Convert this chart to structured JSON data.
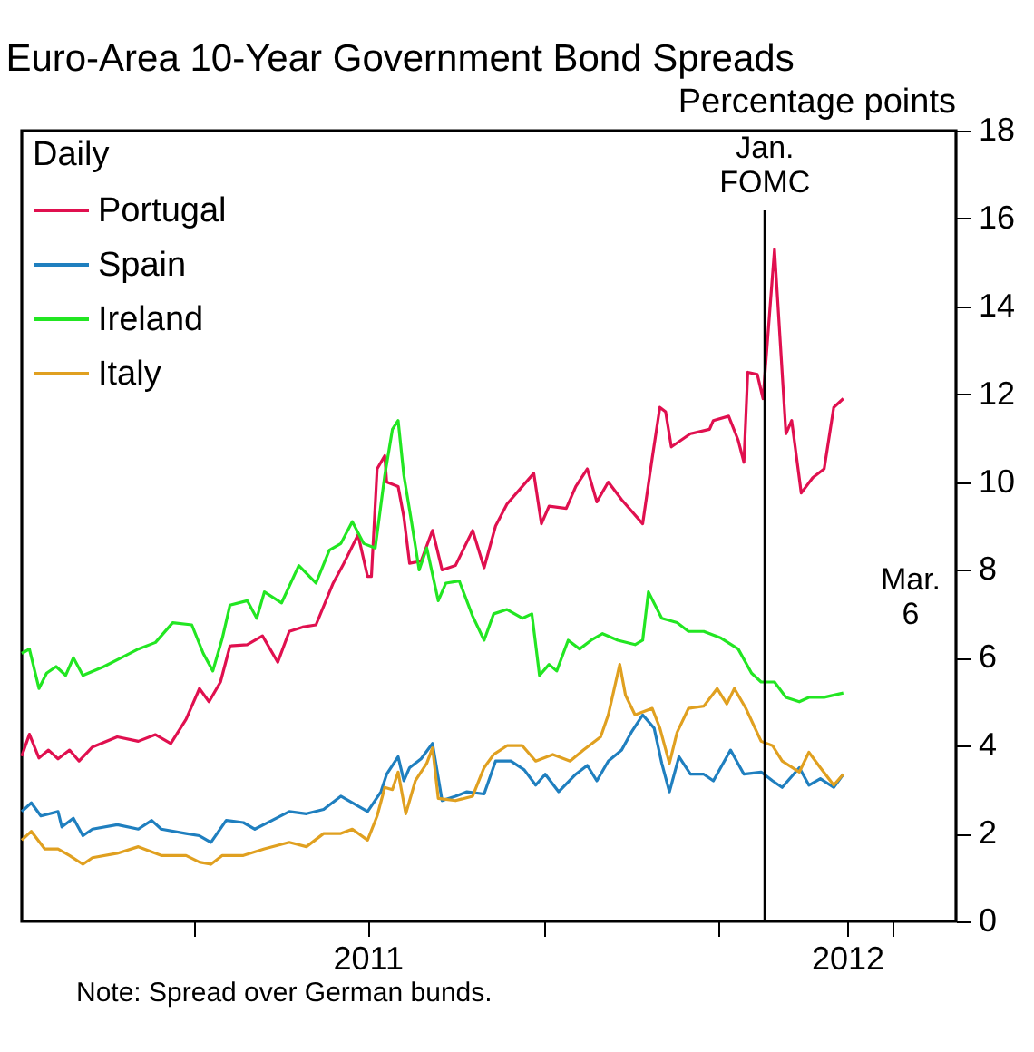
{
  "chart_data": {
    "type": "line",
    "title": "Euro-Area 10-Year Government Bond Spreads",
    "ylabel": "Percentage points",
    "legend_title": "Daily",
    "legend": "top left",
    "grid": false,
    "xlim": [
      "2011-01-01",
      "2012-05-04"
    ],
    "xticks": [
      {
        "value": "2011-04-01",
        "label": null
      },
      {
        "value": "2011-07-01",
        "label": "2011"
      },
      {
        "value": "2011-10-01",
        "label": null
      },
      {
        "value": "2012-01-01",
        "label": null
      },
      {
        "value": "2012-03-08",
        "label": "2012"
      },
      {
        "value": "2012-04-01",
        "label": null
      }
    ],
    "ylim": [
      0,
      18
    ],
    "yticks": [
      0,
      2,
      4,
      6,
      8,
      10,
      12,
      14,
      16,
      18
    ],
    "ref_lines": [
      {
        "axis": "x",
        "value": "2012-01-25",
        "label": "Jan. FOMC",
        "color": "#000000"
      }
    ],
    "annotations": [
      "Mar. 6",
      "Note: Spread over German bunds."
    ],
    "series": [
      {
        "name": "Portugal",
        "color": "#e0104f",
        "x": [
          "2011-01-01",
          "2011-01-05",
          "2011-01-10",
          "2011-01-15",
          "2011-01-20",
          "2011-01-26",
          "2011-01-31",
          "2011-02-07",
          "2011-02-20",
          "2011-03-03",
          "2011-03-12",
          "2011-03-20",
          "2011-03-28",
          "2011-04-04",
          "2011-04-09",
          "2011-04-15",
          "2011-04-20",
          "2011-04-29",
          "2011-05-07",
          "2011-05-15",
          "2011-05-21",
          "2011-05-28",
          "2011-06-04",
          "2011-06-13",
          "2011-06-18",
          "2011-06-26",
          "2011-07-01",
          "2011-07-03",
          "2011-07-06",
          "2011-07-10",
          "2011-07-11",
          "2011-07-17",
          "2011-07-20",
          "2011-07-23",
          "2011-07-29",
          "2011-08-04",
          "2011-08-09",
          "2011-08-16",
          "2011-08-25",
          "2011-08-31",
          "2011-09-06",
          "2011-09-12",
          "2011-09-20",
          "2011-09-26",
          "2011-09-30",
          "2011-10-04",
          "2011-10-13",
          "2011-10-18",
          "2011-10-24",
          "2011-10-29",
          "2011-11-04",
          "2011-11-11",
          "2011-11-22",
          "2011-11-27",
          "2011-12-01",
          "2011-12-04",
          "2011-12-07",
          "2011-12-17",
          "2011-12-27",
          "2011-12-29",
          "2012-01-06",
          "2012-01-11",
          "2012-01-14",
          "2012-01-16",
          "2012-01-21",
          "2012-01-24",
          "2012-01-30",
          "2012-02-02",
          "2012-02-05",
          "2012-02-08",
          "2012-02-13",
          "2012-02-19",
          "2012-02-25",
          "2012-03-01",
          "2012-03-06"
        ],
        "values": [
          3.76,
          4.26,
          3.72,
          3.9,
          3.7,
          3.9,
          3.65,
          3.97,
          4.2,
          4.1,
          4.25,
          4.05,
          4.6,
          5.3,
          5.0,
          5.45,
          6.27,
          6.3,
          6.5,
          5.9,
          6.6,
          6.7,
          6.75,
          7.7,
          8.1,
          8.8,
          7.85,
          7.85,
          10.3,
          10.6,
          10.0,
          9.9,
          9.2,
          8.15,
          8.2,
          8.9,
          8.0,
          8.1,
          8.9,
          8.05,
          9.0,
          9.5,
          9.9,
          10.2,
          9.05,
          9.45,
          9.4,
          9.9,
          10.3,
          9.55,
          10.0,
          9.6,
          9.05,
          10.55,
          11.7,
          11.6,
          10.8,
          11.1,
          11.2,
          11.4,
          11.5,
          10.95,
          10.45,
          12.5,
          12.45,
          11.9,
          15.3,
          13.2,
          11.1,
          11.4,
          9.75,
          10.1,
          10.3,
          11.7,
          11.9
        ]
      },
      {
        "name": "Spain",
        "color": "#1f7fbf",
        "x": [
          "2011-01-01",
          "2011-01-06",
          "2011-01-11",
          "2011-01-20",
          "2011-01-22",
          "2011-01-28",
          "2011-02-02",
          "2011-02-07",
          "2011-02-20",
          "2011-03-03",
          "2011-03-10",
          "2011-03-15",
          "2011-03-28",
          "2011-04-04",
          "2011-04-10",
          "2011-04-18",
          "2011-04-27",
          "2011-05-03",
          "2011-05-12",
          "2011-05-21",
          "2011-05-30",
          "2011-06-08",
          "2011-06-17",
          "2011-06-23",
          "2011-07-01",
          "2011-07-08",
          "2011-07-11",
          "2011-07-17",
          "2011-07-20",
          "2011-07-23",
          "2011-07-29",
          "2011-08-04",
          "2011-08-09",
          "2011-08-16",
          "2011-08-22",
          "2011-08-31",
          "2011-09-06",
          "2011-09-14",
          "2011-09-21",
          "2011-09-27",
          "2011-10-02",
          "2011-10-09",
          "2011-10-18",
          "2011-10-24",
          "2011-10-29",
          "2011-11-04",
          "2011-11-11",
          "2011-11-16",
          "2011-11-22",
          "2011-11-28",
          "2011-12-02",
          "2011-12-06",
          "2011-12-11",
          "2011-12-17",
          "2011-12-24",
          "2011-12-29",
          "2012-01-07",
          "2012-01-14",
          "2012-01-23",
          "2012-01-29",
          "2012-02-03",
          "2012-02-12",
          "2012-02-17",
          "2012-02-23",
          "2012-03-01",
          "2012-03-06"
        ],
        "values": [
          2.5,
          2.7,
          2.4,
          2.5,
          2.15,
          2.35,
          1.95,
          2.1,
          2.2,
          2.1,
          2.3,
          2.1,
          2.0,
          1.95,
          1.8,
          2.3,
          2.25,
          2.1,
          2.3,
          2.5,
          2.45,
          2.55,
          2.85,
          2.7,
          2.5,
          2.95,
          3.35,
          3.75,
          3.2,
          3.5,
          3.7,
          4.05,
          2.75,
          2.85,
          2.95,
          2.9,
          3.65,
          3.65,
          3.45,
          3.1,
          3.35,
          2.95,
          3.35,
          3.55,
          3.2,
          3.65,
          3.9,
          4.3,
          4.7,
          4.4,
          3.6,
          2.95,
          3.75,
          3.35,
          3.35,
          3.2,
          3.9,
          3.35,
          3.4,
          3.2,
          3.05,
          3.5,
          3.1,
          3.25,
          3.05,
          3.35
        ]
      },
      {
        "name": "Ireland",
        "color": "#22e622",
        "x": [
          "2011-01-01",
          "2011-01-05",
          "2011-01-10",
          "2011-01-14",
          "2011-01-19",
          "2011-01-24",
          "2011-01-28",
          "2011-02-02",
          "2011-02-13",
          "2011-02-22",
          "2011-03-03",
          "2011-03-12",
          "2011-03-21",
          "2011-03-31",
          "2011-04-06",
          "2011-04-11",
          "2011-04-16",
          "2011-04-20",
          "2011-04-29",
          "2011-05-04",
          "2011-05-08",
          "2011-05-17",
          "2011-05-26",
          "2011-06-04",
          "2011-06-11",
          "2011-06-17",
          "2011-06-23",
          "2011-06-29",
          "2011-07-05",
          "2011-07-10",
          "2011-07-14",
          "2011-07-17",
          "2011-07-20",
          "2011-07-24",
          "2011-07-28",
          "2011-08-01",
          "2011-08-07",
          "2011-08-11",
          "2011-08-18",
          "2011-08-25",
          "2011-08-31",
          "2011-09-05",
          "2011-09-12",
          "2011-09-20",
          "2011-09-25",
          "2011-09-29",
          "2011-10-04",
          "2011-10-08",
          "2011-10-14",
          "2011-10-20",
          "2011-10-26",
          "2011-11-01",
          "2011-11-09",
          "2011-11-18",
          "2011-11-22",
          "2011-11-25",
          "2011-12-02",
          "2011-12-10",
          "2011-12-16",
          "2011-12-24",
          "2012-01-02",
          "2012-01-11",
          "2012-01-18",
          "2012-01-23",
          "2012-01-30",
          "2012-02-05",
          "2012-02-12",
          "2012-02-17",
          "2012-02-25",
          "2012-03-06"
        ],
        "values": [
          6.1,
          6.2,
          5.3,
          5.65,
          5.8,
          5.6,
          6.0,
          5.6,
          5.8,
          6.0,
          6.2,
          6.35,
          6.8,
          6.75,
          6.1,
          5.7,
          6.45,
          7.2,
          7.3,
          6.9,
          7.5,
          7.25,
          8.1,
          7.7,
          8.45,
          8.6,
          9.1,
          8.6,
          8.5,
          10.15,
          11.2,
          11.4,
          10.15,
          9.1,
          8.0,
          8.5,
          7.3,
          7.7,
          7.75,
          6.95,
          6.4,
          7.0,
          7.1,
          6.9,
          7.0,
          5.6,
          5.85,
          5.7,
          6.4,
          6.2,
          6.4,
          6.55,
          6.4,
          6.3,
          6.4,
          7.5,
          6.9,
          6.8,
          6.6,
          6.6,
          6.45,
          6.2,
          5.65,
          5.45,
          5.45,
          5.1,
          5.0,
          5.1,
          5.1,
          5.2
        ]
      },
      {
        "name": "Italy",
        "color": "#e0a020",
        "x": [
          "2011-01-01",
          "2011-01-06",
          "2011-01-13",
          "2011-01-20",
          "2011-01-26",
          "2011-02-02",
          "2011-02-07",
          "2011-02-20",
          "2011-03-03",
          "2011-03-15",
          "2011-03-28",
          "2011-04-04",
          "2011-04-10",
          "2011-04-16",
          "2011-04-27",
          "2011-05-08",
          "2011-05-21",
          "2011-05-30",
          "2011-06-08",
          "2011-06-17",
          "2011-06-23",
          "2011-07-01",
          "2011-07-06",
          "2011-07-10",
          "2011-07-14",
          "2011-07-17",
          "2011-07-21",
          "2011-07-26",
          "2011-08-01",
          "2011-08-04",
          "2011-08-07",
          "2011-08-16",
          "2011-08-25",
          "2011-08-31",
          "2011-09-05",
          "2011-09-12",
          "2011-09-20",
          "2011-09-27",
          "2011-10-06",
          "2011-10-15",
          "2011-10-22",
          "2011-10-31",
          "2011-11-04",
          "2011-11-10",
          "2011-11-13",
          "2011-11-18",
          "2011-11-27",
          "2011-12-01",
          "2011-12-06",
          "2011-12-10",
          "2011-12-16",
          "2011-12-24",
          "2011-12-31",
          "2012-01-05",
          "2012-01-09",
          "2012-01-15",
          "2012-01-23",
          "2012-01-29",
          "2012-02-03",
          "2012-02-12",
          "2012-02-17",
          "2012-02-23",
          "2012-03-01",
          "2012-03-06"
        ],
        "values": [
          1.85,
          2.05,
          1.65,
          1.65,
          1.5,
          1.3,
          1.45,
          1.55,
          1.7,
          1.5,
          1.5,
          1.35,
          1.3,
          1.5,
          1.5,
          1.65,
          1.8,
          1.7,
          2.0,
          2.0,
          2.1,
          1.85,
          2.4,
          3.05,
          3.0,
          3.4,
          2.45,
          3.2,
          3.6,
          3.95,
          2.8,
          2.75,
          2.85,
          3.5,
          3.8,
          4.0,
          4.0,
          3.65,
          3.8,
          3.65,
          3.9,
          4.2,
          4.7,
          5.85,
          5.15,
          4.7,
          4.85,
          4.4,
          3.6,
          4.3,
          4.85,
          4.9,
          5.3,
          4.95,
          5.3,
          4.85,
          4.1,
          4.0,
          3.65,
          3.4,
          3.85,
          3.5,
          3.1,
          3.35
        ]
      }
    ]
  }
}
